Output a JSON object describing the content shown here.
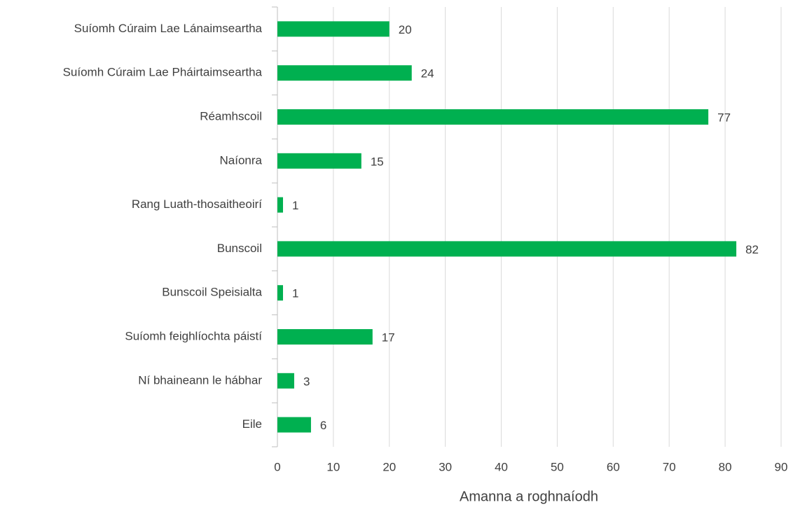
{
  "chart_data": {
    "type": "bar",
    "horizontal": true,
    "categories": [
      "Suíomh Cúraim Lae Lánaimseartha",
      "Suíomh Cúraim Lae Pháirtaimseartha",
      "Réamhscoil",
      "Naíonra",
      "Rang Luath-thosaitheoirí",
      "Bunscoil",
      "Bunscoil Speisialta",
      "Suíomh feighlíochta páistí",
      "Ní bhaineann le hábhar",
      "Eile"
    ],
    "values": [
      20,
      24,
      77,
      15,
      1,
      82,
      1,
      17,
      3,
      6
    ],
    "color": "#00b050",
    "xlim": [
      0,
      90
    ],
    "xticks": [
      0,
      10,
      20,
      30,
      40,
      50,
      60,
      70,
      80,
      90
    ],
    "x_label": "Amanna a roghnaíodh",
    "grid": true
  }
}
